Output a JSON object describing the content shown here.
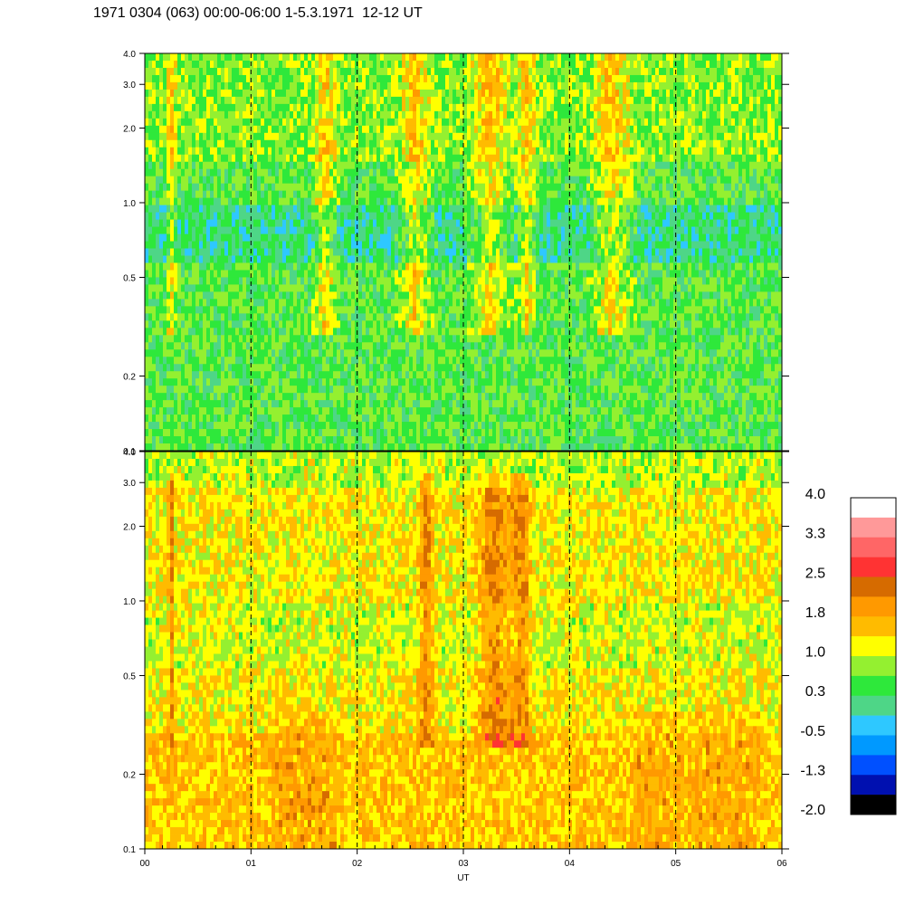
{
  "title": "1971 0304 (063) 00:00-06:00 1-5.3.1971  12-12 UT",
  "chart_data": [
    {
      "type": "heatmap",
      "panel": "upper",
      "x_range": [
        0,
        6
      ],
      "y_range": [
        0.1,
        4.0
      ],
      "y_scale": "log",
      "y_ticks": [
        "0.1",
        "0.2",
        "0.5",
        "1.0",
        "2.0",
        "3.0",
        "4.0"
      ],
      "y_tick_values": [
        0.1,
        0.2,
        0.5,
        1.0,
        2.0,
        3.0,
        4.0
      ],
      "x_hour_markers": [
        1,
        2,
        3,
        4,
        5
      ],
      "dominant_colors": [
        "#2ee83b",
        "#4ed687",
        "#94f030",
        "#ffff00",
        "#ff9900"
      ]
    },
    {
      "type": "heatmap",
      "panel": "lower",
      "x_range": [
        0,
        6
      ],
      "y_range": [
        0.1,
        4.0
      ],
      "y_scale": "log",
      "y_ticks": [
        "0.1",
        "0.2",
        "0.5",
        "1.0",
        "2.0",
        "3.0",
        "4.0"
      ],
      "y_tick_values": [
        0.1,
        0.2,
        0.5,
        1.0,
        2.0,
        3.0,
        4.0
      ],
      "x_ticks": [
        "00",
        "01",
        "02",
        "03",
        "04",
        "05",
        "06"
      ],
      "x_tick_values": [
        0,
        1,
        2,
        3,
        4,
        5,
        6
      ],
      "xlabel": "UT",
      "x_hour_markers": [
        1,
        2,
        3,
        4,
        5
      ],
      "dominant_colors": [
        "#ffff00",
        "#ffbb00",
        "#ff9900",
        "#ff3333",
        "#94f030"
      ]
    }
  ],
  "colorbar": {
    "labels": [
      "4.0",
      "3.3",
      "2.5",
      "1.8",
      "1.0",
      "0.3",
      "-0.5",
      "-1.3",
      "-2.0"
    ],
    "colors": [
      "#ffffff",
      "#ff9999",
      "#ff6666",
      "#ff3333",
      "#d66b00",
      "#ff9900",
      "#ffbb00",
      "#ffff00",
      "#94f030",
      "#2ee83b",
      "#4ed687",
      "#2ec8ff",
      "#0099ff",
      "#0050ff",
      "#0010b0",
      "#000000"
    ]
  }
}
